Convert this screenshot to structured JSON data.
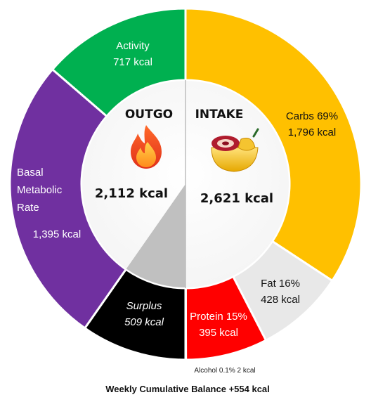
{
  "chart_data": {
    "type": "pie",
    "title": "",
    "rings": {
      "outgo": {
        "heading": "OUTGO",
        "total_label": "2,112 kcal",
        "total_kcal": 2112,
        "icon": "fire-icon",
        "segments": [
          {
            "key": "surplus",
            "name": "Surplus",
            "value": 509,
            "value_label": "509 kcal",
            "color": "#000000",
            "text_color": "#ffffff"
          },
          {
            "key": "bmr",
            "name": "Basal Metabolic Rate",
            "name_lines": [
              "Basal",
              "Metabolic",
              "Rate"
            ],
            "value": 1395,
            "value_label": "1,395 kcal",
            "color": "#7030a0",
            "text_color": "#ffffff"
          },
          {
            "key": "activity",
            "name": "Activity",
            "value": 717,
            "value_label": "717 kcal",
            "color": "#00b050",
            "text_color": "#ffffff"
          }
        ]
      },
      "intake": {
        "heading": "INTAKE",
        "total_label": "2,621 kcal",
        "total_kcal": 2621,
        "icon": "food-bowl-icon",
        "segments": [
          {
            "key": "carbs",
            "name": "Carbs 69%",
            "value": 1796,
            "value_label": "1,796 kcal",
            "color": "#ffc000",
            "text_color": "#111111"
          },
          {
            "key": "fat",
            "name": "Fat 16%",
            "value": 428,
            "value_label": "428 kcal",
            "color": "#e8e8e8",
            "text_color": "#111111"
          },
          {
            "key": "protein",
            "name": "Protein 15%",
            "value": 395,
            "value_label": "395 kcal",
            "color": "#ff0000",
            "text_color": "#ffffff"
          },
          {
            "key": "alcohol",
            "name": "Alcohol 0.1%",
            "value": 2,
            "value_label": "2 kcal",
            "color": "#a0a0a0",
            "text_color": "#111111"
          }
        ]
      }
    },
    "footnote": "Alcohol 0.1%  2 kcal",
    "bottom_title": "Weekly Cumulative Balance +554 kcal",
    "balance_kcal": 554,
    "inner_surplus_wedge_color": "#c0c0c0"
  }
}
